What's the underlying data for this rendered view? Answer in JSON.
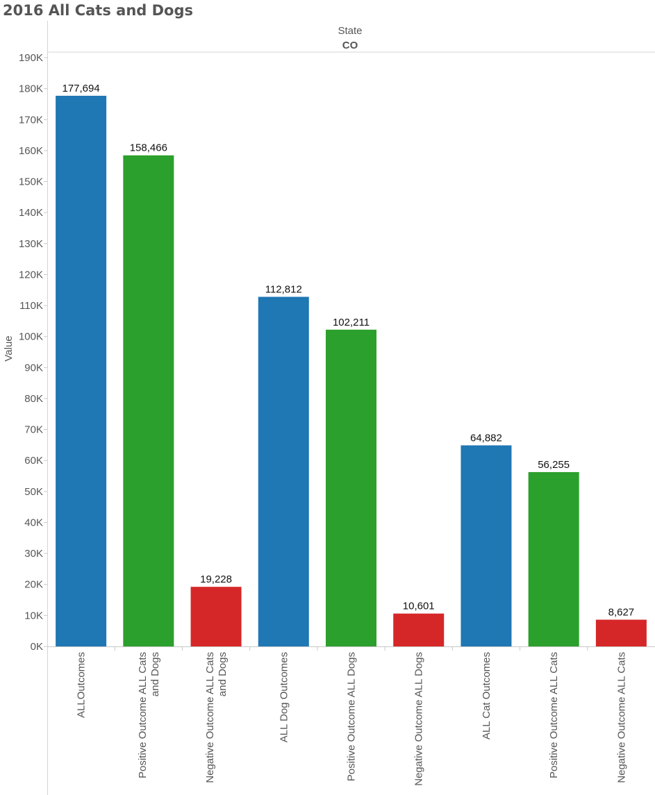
{
  "title": "2016 All Cats and Dogs",
  "chart_data": {
    "type": "bar",
    "title": "2016 All Cats and Dogs",
    "column_header": {
      "field": "State",
      "value": "CO"
    },
    "ylabel": "Value",
    "xlabel": "",
    "ylim": [
      0,
      190000
    ],
    "yticks": [
      0,
      10000,
      20000,
      30000,
      40000,
      50000,
      60000,
      70000,
      80000,
      90000,
      100000,
      110000,
      120000,
      130000,
      140000,
      150000,
      160000,
      170000,
      180000,
      190000
    ],
    "ytick_labels": [
      "0K",
      "10K",
      "20K",
      "30K",
      "40K",
      "50K",
      "60K",
      "70K",
      "80K",
      "90K",
      "100K",
      "110K",
      "120K",
      "130K",
      "140K",
      "150K",
      "160K",
      "170K",
      "180K",
      "190K"
    ],
    "grid": false,
    "legend": "none",
    "colors": {
      "all": "#1f77b4",
      "positive": "#2ca02c",
      "negative": "#d62728"
    },
    "categories": [
      "ALLOutcomes",
      "Positive Outcome ALL Cats and Dogs",
      "Negative Outcome ALL Cats and Dogs",
      "ALL Dog Outcomes",
      "Positive Outcome ALL Dogs",
      "Negative Outcome ALL Dogs",
      "ALL Cat Outcomes",
      "Positive Outcome ALL Cats",
      "Negative Outcome ALL Cats"
    ],
    "category_label_lines": [
      [
        "ALLOutcomes"
      ],
      [
        "Positive Outcome ALL Cats",
        "and Dogs"
      ],
      [
        "Negative Outcome ALL Cats",
        "and Dogs"
      ],
      [
        "ALL Dog Outcomes"
      ],
      [
        "Positive Outcome ALL Dogs"
      ],
      [
        "Negative Outcome ALL Dogs"
      ],
      [
        "ALL Cat Outcomes"
      ],
      [
        "Positive Outcome ALL Cats"
      ],
      [
        "Negative Outcome ALL Cats"
      ]
    ],
    "values": [
      177694,
      158466,
      19228,
      112812,
      102211,
      10601,
      64882,
      56255,
      8627
    ],
    "data_labels": [
      "177,694",
      "158,466",
      "19,228",
      "112,812",
      "102,211",
      "10,601",
      "64,882",
      "56,255",
      "8,627"
    ],
    "bar_kinds": [
      "all",
      "positive",
      "negative",
      "all",
      "positive",
      "negative",
      "all",
      "positive",
      "negative"
    ]
  }
}
